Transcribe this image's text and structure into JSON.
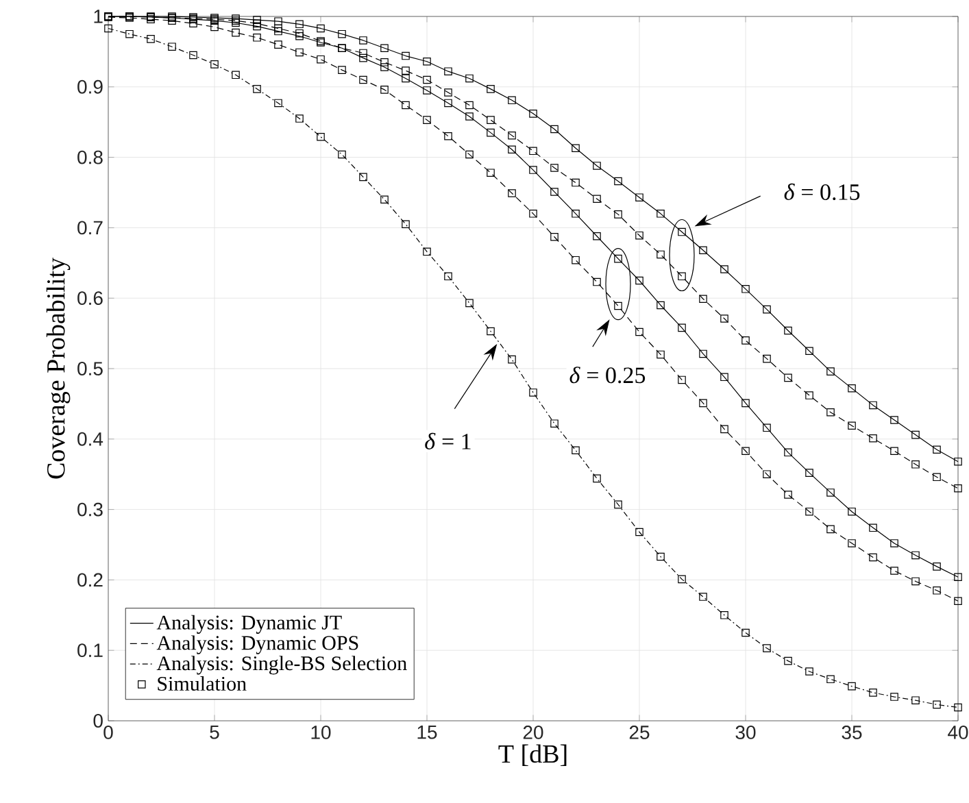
{
  "chart_data": {
    "type": "line",
    "xlabel": "T [dB]",
    "ylabel": "Coverage Probability",
    "x": [
      0,
      1,
      2,
      3,
      4,
      5,
      6,
      7,
      8,
      9,
      10,
      11,
      12,
      13,
      14,
      15,
      16,
      17,
      18,
      19,
      20,
      21,
      22,
      23,
      24,
      25,
      26,
      27,
      28,
      29,
      30,
      31,
      32,
      33,
      34,
      35,
      36,
      37,
      38,
      39,
      40
    ],
    "xlim": [
      0,
      40
    ],
    "xticks": [
      0,
      5,
      10,
      15,
      20,
      25,
      30,
      35,
      40
    ],
    "ylim": [
      0,
      1
    ],
    "yticks": [
      0,
      0.1,
      0.2,
      0.3,
      0.4,
      0.5,
      0.6,
      0.7,
      0.8,
      0.9,
      1
    ],
    "grid": true,
    "legend": "bottom left",
    "series": [
      {
        "name": "Analysis: Dynamic JT",
        "marker": "none",
        "line_style": "solid",
        "color": "#000000",
        "values": [
          1.0,
          1.0,
          1.0,
          1.0,
          0.999,
          0.998,
          0.997,
          0.995,
          0.993,
          0.989,
          0.983,
          0.975,
          0.966,
          0.955,
          0.944,
          0.936,
          0.922,
          0.912,
          0.897,
          0.881,
          0.862,
          0.84,
          0.813,
          0.788,
          0.766,
          0.743,
          0.72,
          0.694,
          0.668,
          0.641,
          0.613,
          0.584,
          0.554,
          0.525,
          0.496,
          0.472,
          0.448,
          0.427,
          0.406,
          0.385,
          0.368
        ]
      },
      {
        "name": "Analysis: Dynamic OPS",
        "marker": "none",
        "line_style": "dashed",
        "color": "#000000",
        "values": [
          1.0,
          1.0,
          0.999,
          0.998,
          0.997,
          0.996,
          0.994,
          0.99,
          0.983,
          0.976,
          0.965,
          0.955,
          0.948,
          0.935,
          0.923,
          0.91,
          0.892,
          0.874,
          0.853,
          0.831,
          0.809,
          0.785,
          0.764,
          0.741,
          0.719,
          0.689,
          0.662,
          0.631,
          0.599,
          0.571,
          0.54,
          0.514,
          0.487,
          0.462,
          0.438,
          0.419,
          0.401,
          0.383,
          0.364,
          0.346,
          0.33
        ]
      },
      {
        "name": "Analysis: Single-BS Selection",
        "marker": "none",
        "line_style": "dashdot",
        "color": "#000000",
        "values": [
          0.983,
          0.975,
          0.968,
          0.957,
          0.945,
          0.932,
          0.917,
          0.897,
          0.877,
          0.855,
          0.829,
          0.804,
          0.772,
          0.74,
          0.705,
          0.666,
          0.631,
          0.593,
          0.553,
          0.513,
          0.466,
          0.422,
          0.384,
          0.344,
          0.307,
          0.268,
          0.233,
          0.201,
          0.176,
          0.15,
          0.125,
          0.103,
          0.085,
          0.07,
          0.059,
          0.049,
          0.04,
          0.034,
          0.029,
          0.023,
          0.019
        ]
      },
      {
        "name": "Simulation",
        "type": "scatter",
        "marker": "square",
        "color": "#000000",
        "values": [
          1.0,
          1.0,
          1.0,
          1.0,
          0.999,
          0.998,
          0.997,
          0.995,
          0.993,
          0.989,
          0.983,
          0.975,
          0.966,
          0.955,
          0.944,
          0.936,
          0.922,
          0.912,
          0.897,
          0.881,
          0.862,
          0.84,
          0.813,
          0.788,
          0.766,
          0.743,
          0.72,
          0.694,
          0.668,
          0.641,
          0.613,
          0.584,
          0.554,
          0.525,
          0.496,
          0.472,
          0.448,
          0.427,
          0.406,
          0.385,
          0.368
        ]
      },
      {
        "marker": "none",
        "line_style": "solid",
        "color": "#000000",
        "values": [
          1.0,
          1.0,
          0.999,
          0.998,
          0.996,
          0.994,
          0.991,
          0.986,
          0.979,
          0.972,
          0.963,
          0.955,
          0.941,
          0.928,
          0.912,
          0.895,
          0.877,
          0.858,
          0.835,
          0.811,
          0.782,
          0.751,
          0.72,
          0.688,
          0.656,
          0.625,
          0.59,
          0.558,
          0.521,
          0.488,
          0.451,
          0.416,
          0.381,
          0.352,
          0.324,
          0.297,
          0.274,
          0.252,
          0.235,
          0.219,
          0.204
        ]
      },
      {
        "marker": "none",
        "line_style": "dashed",
        "color": "#000000",
        "values": [
          0.999,
          0.998,
          0.996,
          0.994,
          0.99,
          0.985,
          0.977,
          0.97,
          0.96,
          0.949,
          0.939,
          0.924,
          0.91,
          0.896,
          0.874,
          0.853,
          0.83,
          0.804,
          0.778,
          0.749,
          0.72,
          0.687,
          0.654,
          0.623,
          0.589,
          0.552,
          0.52,
          0.484,
          0.451,
          0.414,
          0.383,
          0.35,
          0.321,
          0.297,
          0.272,
          0.252,
          0.232,
          0.213,
          0.198,
          0.185,
          0.17
        ]
      },
      {
        "type": "scatter",
        "marker": "square",
        "color": "#000000",
        "values": [
          1.0,
          1.0,
          0.999,
          0.998,
          0.997,
          0.996,
          0.994,
          0.99,
          0.983,
          0.976,
          0.965,
          0.955,
          0.948,
          0.935,
          0.923,
          0.91,
          0.892,
          0.874,
          0.853,
          0.831,
          0.809,
          0.785,
          0.764,
          0.741,
          0.719,
          0.689,
          0.662,
          0.631,
          0.599,
          0.571,
          0.54,
          0.514,
          0.487,
          0.462,
          0.438,
          0.419,
          0.401,
          0.383,
          0.364,
          0.346,
          0.33
        ]
      },
      {
        "type": "scatter",
        "marker": "square",
        "color": "#000000",
        "values": [
          0.983,
          0.975,
          0.968,
          0.957,
          0.945,
          0.932,
          0.917,
          0.897,
          0.877,
          0.855,
          0.829,
          0.804,
          0.772,
          0.74,
          0.705,
          0.666,
          0.631,
          0.593,
          0.553,
          0.513,
          0.466,
          0.422,
          0.384,
          0.344,
          0.307,
          0.268,
          0.233,
          0.201,
          0.176,
          0.15,
          0.125,
          0.103,
          0.085,
          0.07,
          0.059,
          0.049,
          0.04,
          0.034,
          0.029,
          0.023,
          0.019
        ]
      },
      {
        "type": "scatter",
        "marker": "square",
        "color": "#000000",
        "values": [
          1.0,
          1.0,
          0.999,
          0.998,
          0.996,
          0.994,
          0.991,
          0.986,
          0.979,
          0.972,
          0.963,
          0.955,
          0.941,
          0.928,
          0.912,
          0.895,
          0.877,
          0.858,
          0.835,
          0.811,
          0.782,
          0.751,
          0.72,
          0.688,
          0.656,
          0.625,
          0.59,
          0.558,
          0.521,
          0.488,
          0.451,
          0.416,
          0.381,
          0.352,
          0.324,
          0.297,
          0.274,
          0.252,
          0.235,
          0.219,
          0.204
        ]
      },
      {
        "type": "scatter",
        "marker": "square",
        "color": "#000000",
        "values": [
          0.999,
          0.998,
          0.996,
          0.994,
          0.99,
          0.985,
          0.977,
          0.97,
          0.96,
          0.949,
          0.939,
          0.924,
          0.91,
          0.896,
          0.874,
          0.853,
          0.83,
          0.804,
          0.778,
          0.749,
          0.72,
          0.687,
          0.654,
          0.623,
          0.589,
          0.552,
          0.52,
          0.484,
          0.451,
          0.414,
          0.383,
          0.35,
          0.321,
          0.297,
          0.272,
          0.252,
          0.232,
          0.213,
          0.198,
          0.185,
          0.17
        ]
      }
    ],
    "annotations": [
      "*δ* = 0.15",
      "*δ* = 0.25",
      {
        "text": "*δ* = 1",
        "x": 18.3,
        "y": 0.535
      }
    ]
  }
}
